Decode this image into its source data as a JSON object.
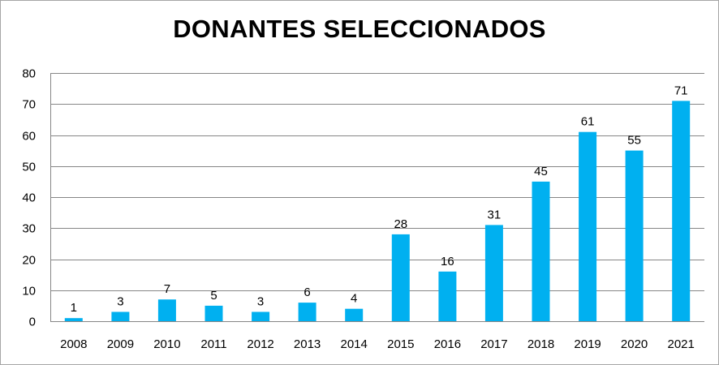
{
  "chart_data": {
    "type": "bar",
    "title": "DONANTES SELECCIONADOS",
    "xlabel": "",
    "ylabel": "",
    "categories": [
      "2008",
      "2009",
      "2010",
      "2011",
      "2012",
      "2013",
      "2014",
      "2015",
      "2016",
      "2017",
      "2018",
      "2019",
      "2020",
      "2021"
    ],
    "values": [
      1,
      3,
      7,
      5,
      3,
      6,
      4,
      28,
      16,
      31,
      45,
      61,
      55,
      71
    ],
    "data_labels": [
      "1",
      "3",
      "7",
      "5",
      "3",
      "6",
      "4",
      "28",
      "16",
      "31",
      "45",
      "61",
      "55",
      "71"
    ],
    "ylim": [
      0,
      80
    ],
    "y_ticks": [
      "0",
      "10",
      "20",
      "30",
      "40",
      "50",
      "60",
      "70",
      "80"
    ],
    "grid": true,
    "legend": "none",
    "bar_color": "#00b0f0",
    "grid_color": "#868686"
  }
}
